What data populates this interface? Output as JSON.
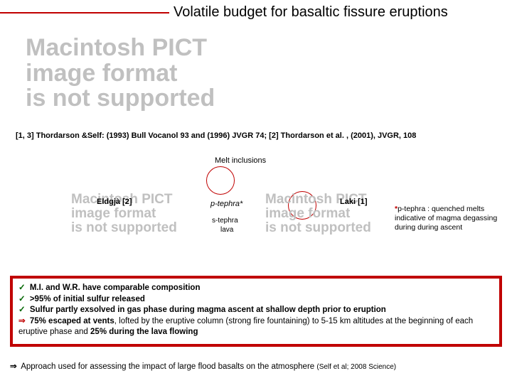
{
  "title": "Volatile budget for basaltic fissure eruptions",
  "pict_placeholder": "Macintosh PICT\nimage format\nis not supported",
  "citation": "[1, 3] Thordarson &Self:  (1993) Bull Vocanol 93 and (1996) JVGR 74; [2] Thordarson et al. , (2001), JVGR,  108",
  "melt_inclusions": "Melt inclusions",
  "eldgja": "Eldgjà [2]",
  "laki": "Laki [1]",
  "ptephra": "p-tephra*",
  "stephra": "s-tephra",
  "lava": "lava",
  "footnote_star": "*",
  "footnote_text": "p-tephra : quenched melts indicative of magma degassing during during ascent",
  "box": {
    "l1_pre": "M.I. and W.R. have comparable composition",
    "l2_pre": ">95%  of initial sulfur released",
    "l3_pre": "Sulfur partly exsolved in gas phase during magma ascent at shallow depth prior to eruption",
    "l4_arrow": "⇒",
    "l4_b1": "75%  escaped at vents",
    "l4_mid": ", lofted by the eruptive column (strong fire fountaining) to 5-15 km altitudes at the beginning of each eruptive phase and ",
    "l4_b2": "25%  during the lava flowing"
  },
  "approach": {
    "arrow": "⇒",
    "text": " Approach used for assessing the impact of large flood basalts on the atmosphere ",
    "cite": "(Self et al; 2008 Science)"
  },
  "colors": {
    "accent": "#c00000",
    "check": "#006600",
    "placeholder": "#c0c0c0"
  }
}
